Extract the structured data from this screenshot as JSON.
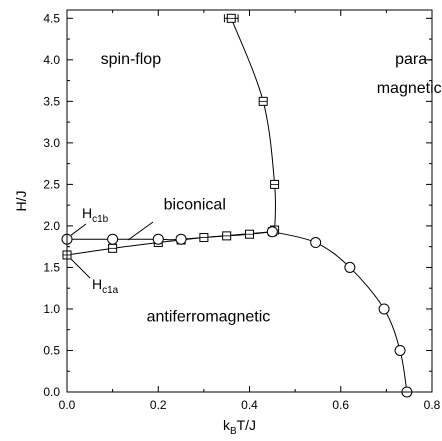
{
  "chart_data": {
    "type": "scatter",
    "xlabel": {
      "main": "k",
      "sub": "B",
      "rest": "T/J"
    },
    "ylabel": "H/J",
    "xlim": [
      0,
      0.8
    ],
    "ylim": [
      0,
      4.6
    ],
    "xticks": [
      0,
      0.2,
      0.4,
      0.6,
      0.8
    ],
    "xtick_labels": [
      "0.0",
      "0.2",
      "0.4",
      "0.6",
      "0.8"
    ],
    "yticks": [
      0,
      0.5,
      1.0,
      1.5,
      2.0,
      2.5,
      3.0,
      3.5,
      4.0,
      4.5
    ],
    "ytick_labels": [
      "0.0",
      "0.5",
      "1.0",
      "1.5",
      "2.0",
      "2.5",
      "3.0",
      "3.5",
      "4.0",
      "4.5"
    ],
    "grid": false,
    "series": [
      {
        "marker": "square",
        "points": [
          {
            "x": 0.0,
            "y": 1.65
          },
          {
            "x": 0.1,
            "y": 1.73
          },
          {
            "x": 0.2,
            "y": 1.8
          },
          {
            "x": 0.25,
            "y": 1.83
          },
          {
            "x": 0.3,
            "y": 1.86
          },
          {
            "x": 0.35,
            "y": 1.88
          },
          {
            "x": 0.4,
            "y": 1.9
          },
          {
            "x": 0.45,
            "y": 1.93
          }
        ]
      },
      {
        "marker": "square",
        "points": [
          {
            "x": 0.455,
            "y": 1.95
          },
          {
            "x": 0.455,
            "y": 2.5
          },
          {
            "x": 0.43,
            "y": 3.5
          },
          {
            "x": 0.36,
            "y": 4.5,
            "xerr": 0.015
          }
        ]
      },
      {
        "marker": "circle",
        "points": [
          {
            "x": 0.0,
            "y": 1.84
          },
          {
            "x": 0.1,
            "y": 1.84
          },
          {
            "x": 0.2,
            "y": 1.84
          },
          {
            "x": 0.25,
            "y": 1.84
          },
          {
            "x": 0.45,
            "y": 1.93
          },
          {
            "x": 0.545,
            "y": 1.8
          },
          {
            "x": 0.62,
            "y": 1.5
          },
          {
            "x": 0.695,
            "y": 1.0
          },
          {
            "x": 0.73,
            "y": 0.5
          },
          {
            "x": 0.745,
            "y": 0.0
          }
        ]
      }
    ],
    "region_labels": [
      {
        "text": "spin-flop",
        "x": 0.14,
        "y": 3.95
      },
      {
        "text": "para-",
        "x": 0.76,
        "y": 3.95
      },
      {
        "text": "magnetic",
        "x": 0.75,
        "y": 3.6
      },
      {
        "text": "biconical",
        "x": 0.28,
        "y": 2.2
      },
      {
        "text": "antiferromagnetic",
        "x": 0.31,
        "y": 0.85
      }
    ],
    "annotations": [
      {
        "main": "H",
        "sub": "c1b"
      },
      {
        "main": "H",
        "sub": "c1a"
      }
    ]
  }
}
